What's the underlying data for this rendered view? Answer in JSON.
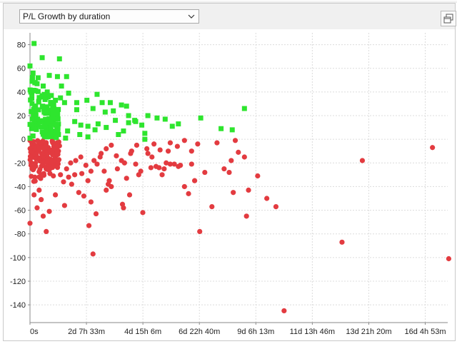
{
  "toolbar": {
    "selector_value": "P/L Growth by duration",
    "selector_icon": "chevron-down-icon",
    "popout_icon": "popout-window-icon"
  },
  "colors": {
    "profit": "#2ee52e",
    "loss": "#e33b40",
    "grid": "#dcdcdc"
  },
  "chart_data": {
    "type": "scatter",
    "title": "",
    "xlabel": "",
    "ylabel": "",
    "x_unit": "hours",
    "xlim": [
      0,
      411
    ],
    "ylim": [
      -155,
      90
    ],
    "grid": true,
    "x_ticks": [
      {
        "value": 0,
        "label": "0s"
      },
      {
        "value": 55.55,
        "label": "2d 7h 33m"
      },
      {
        "value": 111.1,
        "label": "4d 15h 6m"
      },
      {
        "value": 166.67,
        "label": "6d 22h 40m"
      },
      {
        "value": 222.22,
        "label": "9d 6h 13m"
      },
      {
        "value": 277.77,
        "label": "11d 13h 46m"
      },
      {
        "value": 333.33,
        "label": "13d 21h 20m"
      },
      {
        "value": 388.88,
        "label": "16d 4h 53m"
      }
    ],
    "y_ticks": [
      80,
      60,
      40,
      20,
      0,
      -20,
      -40,
      -60,
      -80,
      -100,
      -120,
      -140
    ],
    "series": [
      {
        "marker": "square",
        "color": "#2ee52e",
        "points": [
          [
            4,
            81
          ],
          [
            12,
            69
          ],
          [
            29,
            68
          ],
          [
            0,
            62
          ],
          [
            3,
            56
          ],
          [
            8,
            52
          ],
          [
            19,
            54
          ],
          [
            27,
            53
          ],
          [
            36,
            53
          ],
          [
            31,
            45
          ],
          [
            38,
            39
          ],
          [
            2,
            49
          ],
          [
            7,
            47
          ],
          [
            13,
            45
          ],
          [
            17,
            40
          ],
          [
            21,
            37
          ],
          [
            25,
            33
          ],
          [
            30,
            35
          ],
          [
            34,
            31
          ],
          [
            46,
            31
          ],
          [
            56,
            33
          ],
          [
            66,
            38
          ],
          [
            71,
            31
          ],
          [
            79,
            31
          ],
          [
            46,
            25
          ],
          [
            62,
            26
          ],
          [
            74,
            23
          ],
          [
            82,
            24
          ],
          [
            90,
            29
          ],
          [
            95,
            28
          ],
          [
            97,
            14
          ],
          [
            104,
            15
          ],
          [
            116,
            20
          ],
          [
            125,
            18
          ],
          [
            133,
            17
          ],
          [
            140,
            11
          ],
          [
            146,
            13
          ],
          [
            168,
            18
          ],
          [
            188,
            9
          ],
          [
            199,
            8
          ],
          [
            211,
            26
          ],
          [
            110,
            12
          ],
          [
            113,
            5
          ],
          [
            44,
            15
          ],
          [
            50,
            12
          ],
          [
            57,
            11
          ],
          [
            67,
            13
          ],
          [
            84,
            16
          ],
          [
            97,
            20
          ],
          [
            103,
            16
          ],
          [
            87,
            4
          ],
          [
            92,
            7
          ],
          [
            75,
            10
          ],
          [
            64,
            8
          ],
          [
            49,
            4
          ],
          [
            57,
            2
          ],
          [
            37,
            7
          ],
          [
            28,
            4
          ],
          [
            35,
            1
          ],
          [
            113,
            0
          ]
        ]
      },
      {
        "marker": "circle",
        "color": "#e33b40",
        "points": [
          [
            0,
            -71
          ],
          [
            4,
            -47
          ],
          [
            7,
            -58
          ],
          [
            9,
            -43
          ],
          [
            11,
            -51
          ],
          [
            13,
            -65
          ],
          [
            16,
            -78
          ],
          [
            19,
            -61
          ],
          [
            23,
            -31
          ],
          [
            25,
            -47
          ],
          [
            34,
            -56
          ],
          [
            48,
            -45
          ],
          [
            53,
            -48
          ],
          [
            58,
            -73
          ],
          [
            60,
            -53
          ],
          [
            62,
            -97
          ],
          [
            65,
            -63
          ],
          [
            75,
            -43
          ],
          [
            77,
            -38
          ],
          [
            80,
            -40
          ],
          [
            91,
            -55
          ],
          [
            92,
            -58
          ],
          [
            95,
            -33
          ],
          [
            98,
            -47
          ],
          [
            107,
            -30
          ],
          [
            109,
            -27
          ],
          [
            111,
            -62
          ],
          [
            119,
            -24
          ],
          [
            124,
            -23
          ],
          [
            127,
            -24
          ],
          [
            130,
            -30
          ],
          [
            132,
            -25
          ],
          [
            134,
            -20
          ],
          [
            138,
            -21
          ],
          [
            142,
            -21
          ],
          [
            146,
            -23
          ],
          [
            148,
            -22
          ],
          [
            152,
            -40
          ],
          [
            156,
            -46
          ],
          [
            159,
            -10
          ],
          [
            162,
            -35
          ],
          [
            167,
            -78
          ],
          [
            172,
            -28
          ],
          [
            179,
            -57
          ],
          [
            184,
            -3
          ],
          [
            191,
            -25
          ],
          [
            196,
            -28
          ],
          [
            198,
            -18
          ],
          [
            200,
            -45
          ],
          [
            202,
            -1
          ],
          [
            205,
            -11
          ],
          [
            211,
            -15
          ],
          [
            213,
            -65
          ],
          [
            215,
            -43
          ],
          [
            224,
            -31
          ],
          [
            233,
            -50
          ],
          [
            242,
            -57
          ],
          [
            250,
            -145
          ],
          [
            307,
            -87
          ],
          [
            327,
            -18
          ],
          [
            396,
            -7
          ],
          [
            412,
            -101
          ],
          [
            36,
            -25
          ],
          [
            40,
            -20
          ],
          [
            45,
            -18
          ],
          [
            50,
            -15
          ],
          [
            55,
            -22
          ],
          [
            60,
            -27
          ],
          [
            66,
            -21
          ],
          [
            70,
            -12
          ],
          [
            75,
            -8
          ],
          [
            80,
            -5
          ],
          [
            85,
            -14
          ],
          [
            90,
            -18
          ],
          [
            100,
            -10
          ],
          [
            105,
            -5
          ],
          [
            115,
            -8
          ],
          [
            120,
            -15
          ],
          [
            128,
            -9
          ],
          [
            138,
            -3
          ],
          [
            145,
            -6
          ],
          [
            152,
            -1
          ],
          [
            28,
            -10
          ],
          [
            30,
            -30
          ],
          [
            33,
            -36
          ],
          [
            38,
            -32
          ],
          [
            41,
            -38
          ],
          [
            44,
            -30
          ],
          [
            51,
            -29
          ],
          [
            57,
            -35
          ],
          [
            63,
            -18
          ],
          [
            69,
            -15
          ],
          [
            73,
            -27
          ],
          [
            78,
            -35
          ],
          [
            86,
            -25
          ],
          [
            93,
            -20
          ],
          [
            99,
            -12
          ],
          [
            104,
            -21
          ],
          [
            116,
            -12
          ],
          [
            122,
            -4
          ],
          [
            136,
            -10
          ],
          [
            159,
            -21
          ],
          [
            165,
            -4
          ]
        ]
      }
    ]
  }
}
